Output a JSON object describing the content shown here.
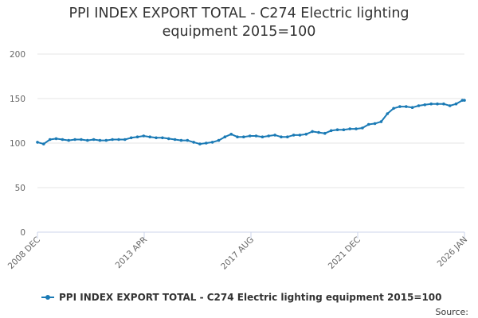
{
  "chart_data": {
    "type": "line",
    "title": "PPI INDEX EXPORT TOTAL - C274 Electric lighting equipment 2015=100",
    "title_lines": [
      "PPI INDEX EXPORT TOTAL - C274 Electric lighting",
      "equipment 2015=100"
    ],
    "xlabel": "",
    "ylabel": "",
    "ylim": [
      0,
      200
    ],
    "yticks": [
      0,
      50,
      100,
      150,
      200
    ],
    "x_tick_labels": [
      "2008 DEC",
      "2013 APR",
      "2017 AUG",
      "2021 DEC",
      "2026 JAN"
    ],
    "x_range": [
      "2008-12",
      "2026-01"
    ],
    "grid": true,
    "legend_position": "bottom",
    "series_color": "#1a7ab5",
    "series": [
      {
        "name": "PPI INDEX EXPORT TOTAL - C274 Electric lighting equipment 2015=100",
        "x": [
          "2008-12",
          "2009-03",
          "2009-06",
          "2009-09",
          "2009-12",
          "2010-03",
          "2010-06",
          "2010-09",
          "2010-12",
          "2011-03",
          "2011-06",
          "2011-09",
          "2011-12",
          "2012-03",
          "2012-06",
          "2012-09",
          "2012-12",
          "2013-03",
          "2013-06",
          "2013-09",
          "2013-12",
          "2014-03",
          "2014-06",
          "2014-09",
          "2014-12",
          "2015-03",
          "2015-06",
          "2015-09",
          "2015-12",
          "2016-03",
          "2016-06",
          "2016-09",
          "2016-12",
          "2017-03",
          "2017-06",
          "2017-09",
          "2017-12",
          "2018-03",
          "2018-06",
          "2018-09",
          "2018-12",
          "2019-03",
          "2019-06",
          "2019-09",
          "2019-12",
          "2020-03",
          "2020-06",
          "2020-09",
          "2020-12",
          "2021-03",
          "2021-06",
          "2021-09",
          "2021-12",
          "2022-03",
          "2022-06",
          "2022-09",
          "2022-12",
          "2023-03",
          "2023-06",
          "2023-09",
          "2023-12",
          "2024-03",
          "2024-06",
          "2024-09",
          "2024-12",
          "2025-03",
          "2025-06",
          "2025-09",
          "2025-12",
          "2026-01"
        ],
        "values": [
          101,
          99,
          104,
          105,
          104,
          103,
          104,
          104,
          103,
          104,
          103,
          103,
          104,
          104,
          104,
          106,
          107,
          108,
          107,
          106,
          106,
          105,
          104,
          103,
          103,
          101,
          99,
          100,
          101,
          103,
          107,
          110,
          107,
          107,
          108,
          108,
          107,
          108,
          109,
          107,
          107,
          109,
          109,
          110,
          113,
          112,
          111,
          114,
          115,
          115,
          116,
          116,
          117,
          121,
          122,
          124,
          133,
          139,
          141,
          141,
          140,
          142,
          143,
          144,
          144,
          144,
          142,
          144,
          148,
          148
        ]
      }
    ],
    "source_label": "Source:"
  }
}
